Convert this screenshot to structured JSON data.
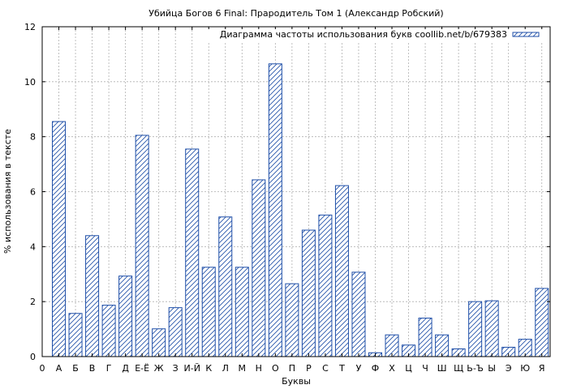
{
  "chart_data": {
    "type": "bar",
    "title": "Убийца Богов 6 Final: Прародитель Том 1 (Александр Робский)",
    "xlabel": "Буквы",
    "ylabel": "% использования в тексте",
    "legend": {
      "label": "Диаграмма частоты использования букв coollib.net/b/679383",
      "position": "top-right"
    },
    "ylim": [
      0,
      12
    ],
    "yticks": [
      0,
      2,
      4,
      6,
      8,
      10,
      12
    ],
    "grid": true,
    "x_start_label": "0",
    "categories": [
      "А",
      "Б",
      "В",
      "Г",
      "Д",
      "Е-Ё",
      "Ж",
      "З",
      "И-Й",
      "К",
      "Л",
      "М",
      "Н",
      "О",
      "П",
      "Р",
      "С",
      "Т",
      "У",
      "Ф",
      "Х",
      "Ц",
      "Ч",
      "Ш",
      "Щ",
      "Ь-Ъ",
      "Ы",
      "Э",
      "Ю",
      "Я"
    ],
    "values": [
      8.55,
      1.57,
      4.4,
      1.87,
      2.93,
      8.05,
      1.01,
      1.78,
      7.55,
      3.25,
      5.08,
      3.25,
      6.43,
      10.65,
      2.65,
      4.6,
      5.15,
      6.22,
      3.07,
      0.14,
      0.79,
      0.42,
      1.4,
      0.79,
      0.28,
      2.0,
      2.03,
      0.34,
      0.63,
      2.48
    ],
    "colors": {
      "bar_stroke": "#1f4fa8",
      "hatch": "#1f4fa8",
      "grid": "#b0b0b0"
    }
  }
}
